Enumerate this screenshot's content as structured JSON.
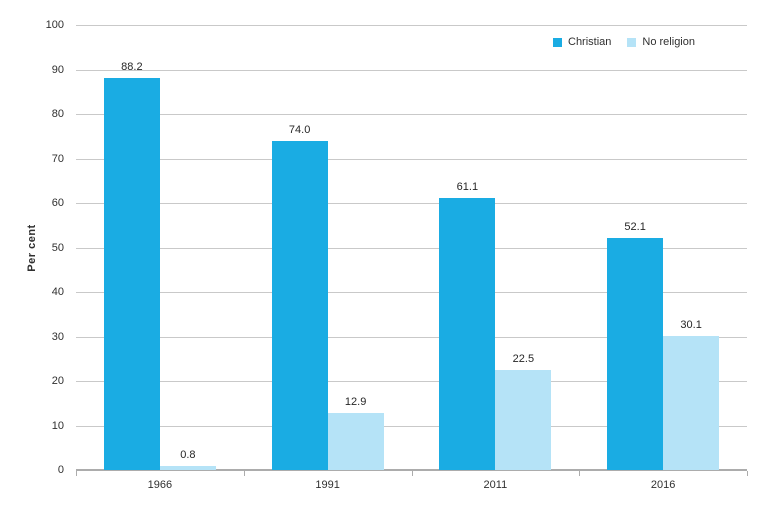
{
  "chart_data": {
    "type": "bar",
    "title": "",
    "categories": [
      "1966",
      "1991",
      "2011",
      "2016"
    ],
    "series": [
      {
        "name": "Christian",
        "color": "#1AACE3",
        "values": [
          88.2,
          74.0,
          61.1,
          52.1
        ],
        "labels": [
          "88.2",
          "74.0",
          "61.1",
          "52.1"
        ]
      },
      {
        "name": "No religion",
        "color": "#B5E3F7",
        "values": [
          0.8,
          12.9,
          22.5,
          30.1
        ],
        "labels": [
          "0.8",
          "12.9",
          "22.5",
          "30.1"
        ]
      }
    ],
    "xlabel": "",
    "ylabel": "Per cent",
    "ylim": [
      0,
      100
    ],
    "ytick_step": 10,
    "y_ticks": [
      "0",
      "10",
      "20",
      "30",
      "40",
      "50",
      "60",
      "70",
      "80",
      "90",
      "100"
    ],
    "grid": "horizontal",
    "legend_position": "top-right",
    "colors": {
      "gridline": "#C9C9C9",
      "axis_line": "#ACACAC",
      "text": "#303030"
    }
  }
}
